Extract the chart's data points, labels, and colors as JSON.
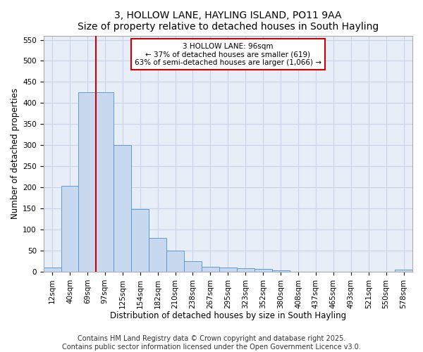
{
  "title1": "3, HOLLOW LANE, HAYLING ISLAND, PO11 9AA",
  "title2": "Size of property relative to detached houses in South Hayling",
  "xlabel": "Distribution of detached houses by size in South Hayling",
  "ylabel": "Number of detached properties",
  "categories": [
    "12sqm",
    "40sqm",
    "69sqm",
    "97sqm",
    "125sqm",
    "154sqm",
    "182sqm",
    "210sqm",
    "238sqm",
    "267sqm",
    "295sqm",
    "323sqm",
    "352sqm",
    "380sqm",
    "408sqm",
    "437sqm",
    "465sqm",
    "493sqm",
    "521sqm",
    "550sqm",
    "578sqm"
  ],
  "values": [
    10,
    203,
    425,
    425,
    300,
    148,
    80,
    50,
    25,
    12,
    10,
    8,
    6,
    4,
    0,
    0,
    0,
    0,
    0,
    0,
    5
  ],
  "bar_color": "#c8d9ef",
  "bar_edge_color": "#5b9bd5",
  "grid_color": "#c8d4e8",
  "background_color": "#e8eef8",
  "ylim": [
    0,
    560
  ],
  "yticks": [
    0,
    50,
    100,
    150,
    200,
    250,
    300,
    350,
    400,
    450,
    500,
    550
  ],
  "red_line_x": 2.5,
  "annotation_text": "3 HOLLOW LANE: 96sqm\n← 37% of detached houses are smaller (619)\n63% of semi-detached houses are larger (1,066) →",
  "annotation_box_color": "#ffffff",
  "annotation_edge_color": "#cc0000",
  "annotation_text_color": "#000000",
  "red_line_color": "#cc0000",
  "footer1": "Contains HM Land Registry data © Crown copyright and database right 2025.",
  "footer2": "Contains public sector information licensed under the Open Government Licence v3.0.",
  "title_fontsize": 10,
  "subtitle_fontsize": 9,
  "tick_fontsize": 7.5,
  "xlabel_fontsize": 8.5,
  "ylabel_fontsize": 8.5,
  "footer_fontsize": 7
}
